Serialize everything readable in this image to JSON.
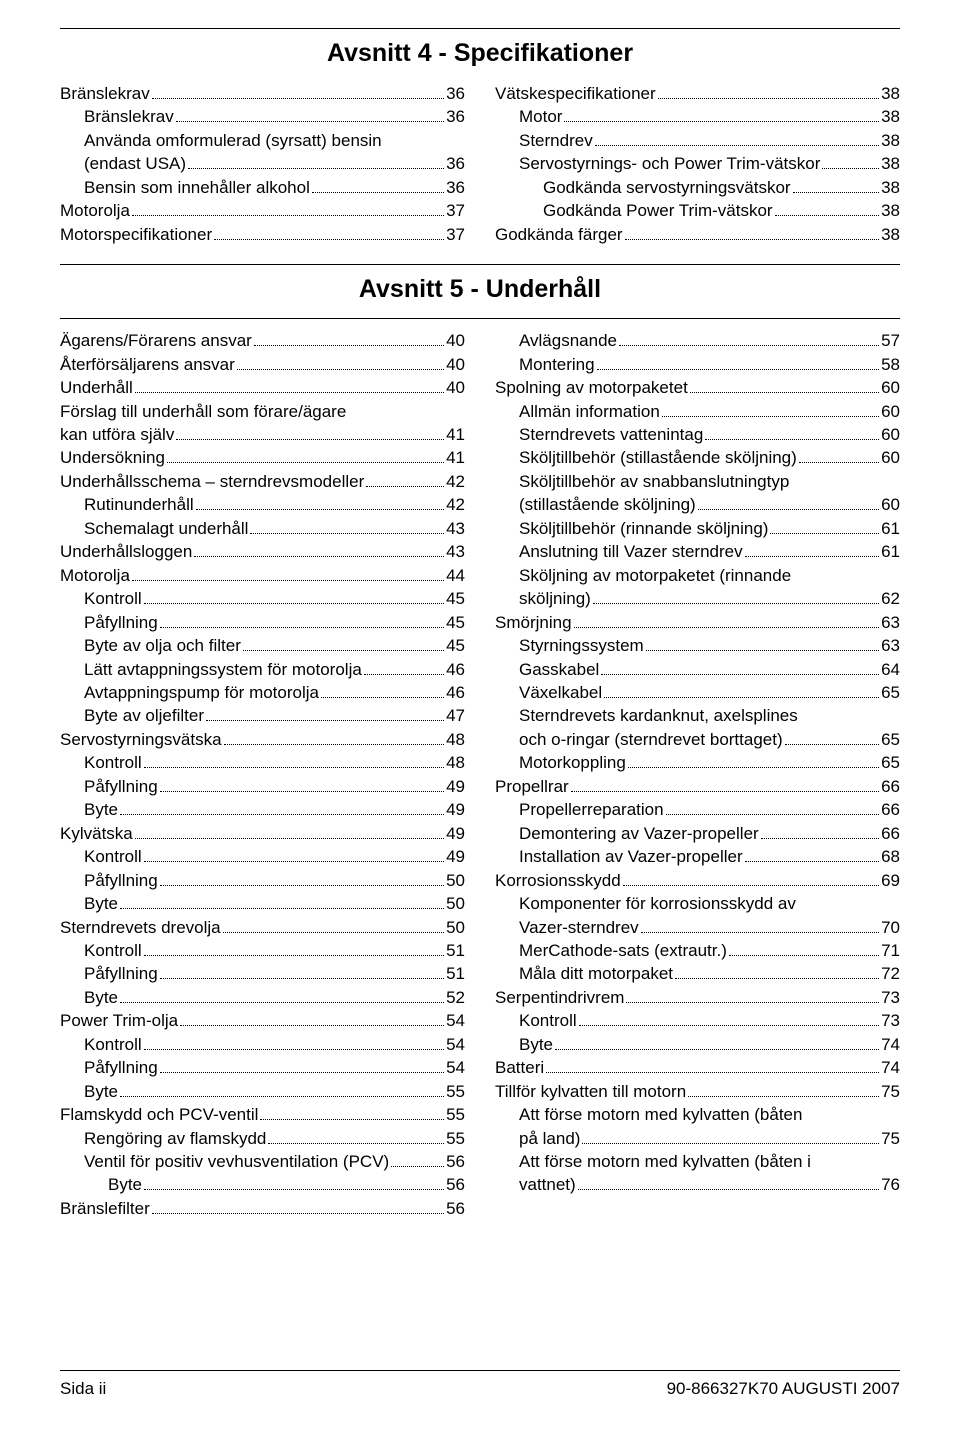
{
  "section4": {
    "title": "Avsnitt 4 - Specifikationer",
    "left": [
      {
        "label": "Bränslekrav",
        "page": "36",
        "indent": 0
      },
      {
        "label": "Bränslekrav",
        "page": "36",
        "indent": 1
      },
      {
        "label": "Använda omformulerad (syrsatt) bensin (endast USA)",
        "page": " 36",
        "indent": 1,
        "wrap": true
      },
      {
        "label": "Bensin som innehåller alkohol",
        "page": " 36",
        "indent": 1
      },
      {
        "label": "Motorolja",
        "page": "37",
        "indent": 0
      },
      {
        "label": "Motorspecifikationer",
        "page": " 37",
        "indent": 0
      }
    ],
    "right": [
      {
        "label": "Vätskespecifikationer",
        "page": "38",
        "indent": 0
      },
      {
        "label": "Motor",
        "page": " 38",
        "indent": 1
      },
      {
        "label": "Sterndrev",
        "page": "38",
        "indent": 1
      },
      {
        "label": "Servostyrnings- och Power Trim-vätskor",
        "page": " 38",
        "indent": 1
      },
      {
        "label": "Godkända servostyrningsvätskor",
        "page": "38",
        "indent": 2
      },
      {
        "label": "Godkända Power Trim-vätskor",
        "page": " 38",
        "indent": 2
      },
      {
        "label": "Godkända färger",
        "page": "38",
        "indent": 0
      }
    ]
  },
  "section5": {
    "title": "Avsnitt 5 - Underhåll",
    "left": [
      {
        "label": "Ägarens/Förarens ansvar",
        "page": "40",
        "indent": 0
      },
      {
        "label": "Återförsäljarens ansvar",
        "page": "40",
        "indent": 0
      },
      {
        "label": "Underhåll",
        "page": " 40",
        "indent": 0
      },
      {
        "label": "Förslag till underhåll som förare/ägare kan utföra själv",
        "page": " 41",
        "indent": 0,
        "wrap": true
      },
      {
        "label": "Undersökning",
        "page": " 41",
        "indent": 0
      },
      {
        "label": "Underhållsschema – sterndrevsmodeller",
        "page": " 42",
        "indent": 0
      },
      {
        "label": "Rutinunderhåll",
        "page": " 42",
        "indent": 1
      },
      {
        "label": "Schemalagt underhåll",
        "page": "43",
        "indent": 1
      },
      {
        "label": "Underhållsloggen",
        "page": "43",
        "indent": 0
      },
      {
        "label": "Motorolja",
        "page": "44",
        "indent": 0
      },
      {
        "label": "Kontroll",
        "page": " 45",
        "indent": 1
      },
      {
        "label": "Påfyllning",
        "page": "45",
        "indent": 1
      },
      {
        "label": "Byte av olja och filter",
        "page": " 45",
        "indent": 1
      },
      {
        "label": "Lätt avtappningssystem för motorolja",
        "page": "46",
        "indent": 1
      },
      {
        "label": "Avtappningspump för motorolja",
        "page": "46",
        "indent": 1
      },
      {
        "label": "Byte av oljefilter",
        "page": "47",
        "indent": 1
      },
      {
        "label": "Servostyrningsvätska",
        "page": " 48",
        "indent": 0
      },
      {
        "label": "Kontroll",
        "page": " 48",
        "indent": 1
      },
      {
        "label": "Påfyllning",
        "page": "49",
        "indent": 1
      },
      {
        "label": "Byte",
        "page": " 49",
        "indent": 1
      },
      {
        "label": "Kylvätska",
        "page": " 49",
        "indent": 0
      },
      {
        "label": "Kontroll",
        "page": " 49",
        "indent": 1
      },
      {
        "label": "Påfyllning",
        "page": "50",
        "indent": 1
      },
      {
        "label": "Byte ",
        "page": " 50",
        "indent": 1
      },
      {
        "label": "Sterndrevets drevolja",
        "page": "50",
        "indent": 0
      },
      {
        "label": "Kontroll",
        "page": " 51",
        "indent": 1
      },
      {
        "label": "Påfyllning",
        "page": "51",
        "indent": 1
      },
      {
        "label": "Byte",
        "page": " 52",
        "indent": 1
      },
      {
        "label": "Power Trim-olja",
        "page": " 54",
        "indent": 0
      },
      {
        "label": "Kontroll",
        "page": " 54",
        "indent": 1
      },
      {
        "label": "Påfyllning",
        "page": "54",
        "indent": 1
      },
      {
        "label": "Byte",
        "page": " 55",
        "indent": 1
      },
      {
        "label": "Flamskydd och PCV-ventil",
        "page": " 55",
        "indent": 0
      },
      {
        "label": "Rengöring av flamskydd",
        "page": "55",
        "indent": 1
      },
      {
        "label": "Ventil för positiv vevhusventilation (PCV)",
        "page": "56",
        "indent": 1
      },
      {
        "label": "Byte",
        "page": "56",
        "indent": 2
      },
      {
        "label": "Bränslefilter",
        "page": "56",
        "indent": 0
      }
    ],
    "right": [
      {
        "label": "Avlägsnande",
        "page": "57",
        "indent": 1
      },
      {
        "label": "Montering",
        "page": " 58",
        "indent": 1
      },
      {
        "label": "Spolning av motorpaketet",
        "page": "60",
        "indent": 0
      },
      {
        "label": "Allmän information",
        "page": "60",
        "indent": 1
      },
      {
        "label": "Sterndrevets vattenintag",
        "page": " 60",
        "indent": 1
      },
      {
        "label": "Sköljtillbehör (stillastående sköljning)",
        "page": "60",
        "indent": 1
      },
      {
        "label": "Sköljtillbehör av snabbanslutningtyp (stillastående sköljning)",
        "page": "60",
        "indent": 1,
        "wrap": true
      },
      {
        "label": "Sköljtillbehör (rinnande sköljning)",
        "page": "61",
        "indent": 1
      },
      {
        "label": "Anslutning till Vazer sterndrev",
        "page": "61",
        "indent": 1
      },
      {
        "label": "Sköljning av motorpaketet (rinnande sköljning)",
        "page": " 62",
        "indent": 1,
        "wrap": true
      },
      {
        "label": "Smörjning",
        "page": " 63",
        "indent": 0
      },
      {
        "label": "Styrningssystem",
        "page": "63",
        "indent": 1
      },
      {
        "label": "Gasskabel",
        "page": " 64",
        "indent": 1
      },
      {
        "label": "Växelkabel",
        "page": "65",
        "indent": 1
      },
      {
        "label": "Sterndrevets kardanknut, axelsplines och o-ringar (sterndrevet borttaget)",
        "page": " 65",
        "indent": 1,
        "wrap": true
      },
      {
        "label": "Motorkoppling",
        "page": "65",
        "indent": 1
      },
      {
        "label": "Propellrar",
        "page": "66",
        "indent": 0
      },
      {
        "label": "Propellerreparation",
        "page": "66",
        "indent": 1
      },
      {
        "label": "Demontering av Vazer-propeller",
        "page": " 66",
        "indent": 1
      },
      {
        "label": "Installation av Vazer-propeller",
        "page": "68",
        "indent": 1
      },
      {
        "label": "Korrosionsskydd",
        "page": "69",
        "indent": 0
      },
      {
        "label": "Komponenter för korrosionsskydd av Vazer-sterndrev",
        "page": "70",
        "indent": 1,
        "wrap": true
      },
      {
        "label": "MerCathode-sats (extrautr.)",
        "page": " 71",
        "indent": 1
      },
      {
        "label": "Måla ditt motorpaket",
        "page": "72",
        "indent": 1
      },
      {
        "label": "Serpentindrivrem",
        "page": " 73",
        "indent": 0
      },
      {
        "label": "Kontroll",
        "page": " 73",
        "indent": 1
      },
      {
        "label": "Byte",
        "page": " 74",
        "indent": 1
      },
      {
        "label": "Batteri",
        "page": " 74",
        "indent": 0
      },
      {
        "label": "Tillför kylvatten till motorn",
        "page": "75",
        "indent": 0
      },
      {
        "label": "Att förse motorn med kylvatten (båten på land)",
        "page": " 75",
        "indent": 1,
        "wrap": true
      },
      {
        "label": "Att förse motorn med kylvatten (båten i vattnet)",
        "page": " 76",
        "indent": 1,
        "wrap": true
      }
    ]
  },
  "footer": {
    "left": "Sida  ii",
    "right": "90-866327K70   AUGUSTI  2007"
  }
}
